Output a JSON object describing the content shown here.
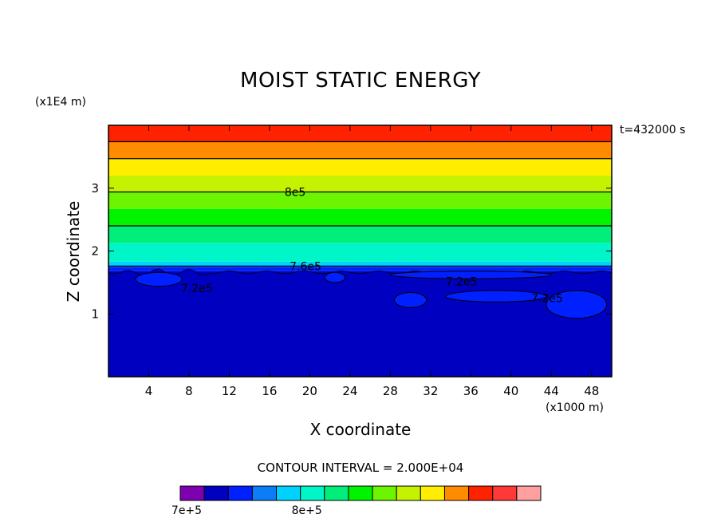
{
  "chart_data": {
    "type": "heatmap",
    "title": "MOIST STATIC ENERGY",
    "xlabel": "X coordinate",
    "ylabel": "Z coordinate",
    "x_unit": "(x1000 m)",
    "z_unit": "(x1E4 m)",
    "time_label": "t=432000 s",
    "contour_interval_label": "CONTOUR INTERVAL = 2.000E+04",
    "xlim": [
      0,
      50
    ],
    "ylim": [
      0,
      4
    ],
    "x_ticks": [
      4,
      8,
      12,
      16,
      20,
      24,
      28,
      32,
      36,
      40,
      44,
      48
    ],
    "y_ticks": [
      1,
      2,
      3
    ],
    "contour_levels": [
      700000,
      720000,
      740000,
      760000,
      780000,
      800000,
      820000,
      840000,
      860000,
      880000,
      900000,
      920000,
      940000,
      960000
    ],
    "colorbar_colors": [
      "#7f00b0",
      "#0000c0",
      "#0020ff",
      "#0a7df7",
      "#00d2ff",
      "#00f5c8",
      "#00ee7a",
      "#00f400",
      "#6df400",
      "#c5f200",
      "#ffee00",
      "#ff8c00",
      "#ff2200",
      "#ff3838",
      "#ffa0a0"
    ],
    "colorbar_labels": [
      {
        "value": 700000,
        "text": "7e+5"
      },
      {
        "value": 800000,
        "text": "8e+5"
      }
    ],
    "bands": [
      {
        "z0": 0.0,
        "z1": 1.68,
        "color": "#0000c0"
      },
      {
        "z0": 1.68,
        "z1": 1.75,
        "color": "#0020ff"
      },
      {
        "z0": 1.75,
        "z1": 1.83,
        "color": "#00d2ff"
      },
      {
        "z0": 1.83,
        "z1": 2.13,
        "color": "#00f5c8"
      },
      {
        "z0": 2.13,
        "z1": 2.4,
        "color": "#00ee7a"
      },
      {
        "z0": 2.4,
        "z1": 2.67,
        "color": "#00f400"
      },
      {
        "z0": 2.67,
        "z1": 2.94,
        "color": "#6df400"
      },
      {
        "z0": 2.94,
        "z1": 3.2,
        "color": "#c5f200"
      },
      {
        "z0": 3.2,
        "z1": 3.47,
        "color": "#ffee00"
      },
      {
        "z0": 3.47,
        "z1": 3.74,
        "color": "#ff8c00"
      },
      {
        "z0": 3.74,
        "z1": 4.0,
        "color": "#ff2200"
      }
    ],
    "contour_lines": [
      {
        "z": 1.76,
        "label": "7.6e5",
        "label_x": 18.0
      },
      {
        "z": 2.4,
        "label": "",
        "label_x": null
      },
      {
        "z": 2.94,
        "label": "8e5",
        "label_x": 17.5
      },
      {
        "z": 3.47,
        "label": "",
        "label_x": null
      },
      {
        "z": 3.74,
        "label": "",
        "label_x": null
      }
    ],
    "inline_labels": [
      {
        "x": 7.2,
        "z": 1.41,
        "text": "7.2e5"
      },
      {
        "x": 33.5,
        "z": 1.52,
        "text": "7.2e5"
      },
      {
        "x": 42.0,
        "z": 1.25,
        "text": "7.2e5"
      }
    ],
    "light_blue_blobs": [
      {
        "x": 5.0,
        "z": 1.55,
        "rx": 2.3,
        "rz": 0.11
      },
      {
        "x": 22.5,
        "z": 1.58,
        "rx": 1.0,
        "rz": 0.08
      },
      {
        "x": 30.0,
        "z": 1.22,
        "rx": 1.6,
        "rz": 0.12
      },
      {
        "x": 38.5,
        "z": 1.28,
        "rx": 5.0,
        "rz": 0.09
      },
      {
        "x": 46.5,
        "z": 1.15,
        "rx": 3.0,
        "rz": 0.22
      },
      {
        "x": 36.0,
        "z": 1.62,
        "rx": 8.0,
        "rz": 0.06
      }
    ]
  }
}
